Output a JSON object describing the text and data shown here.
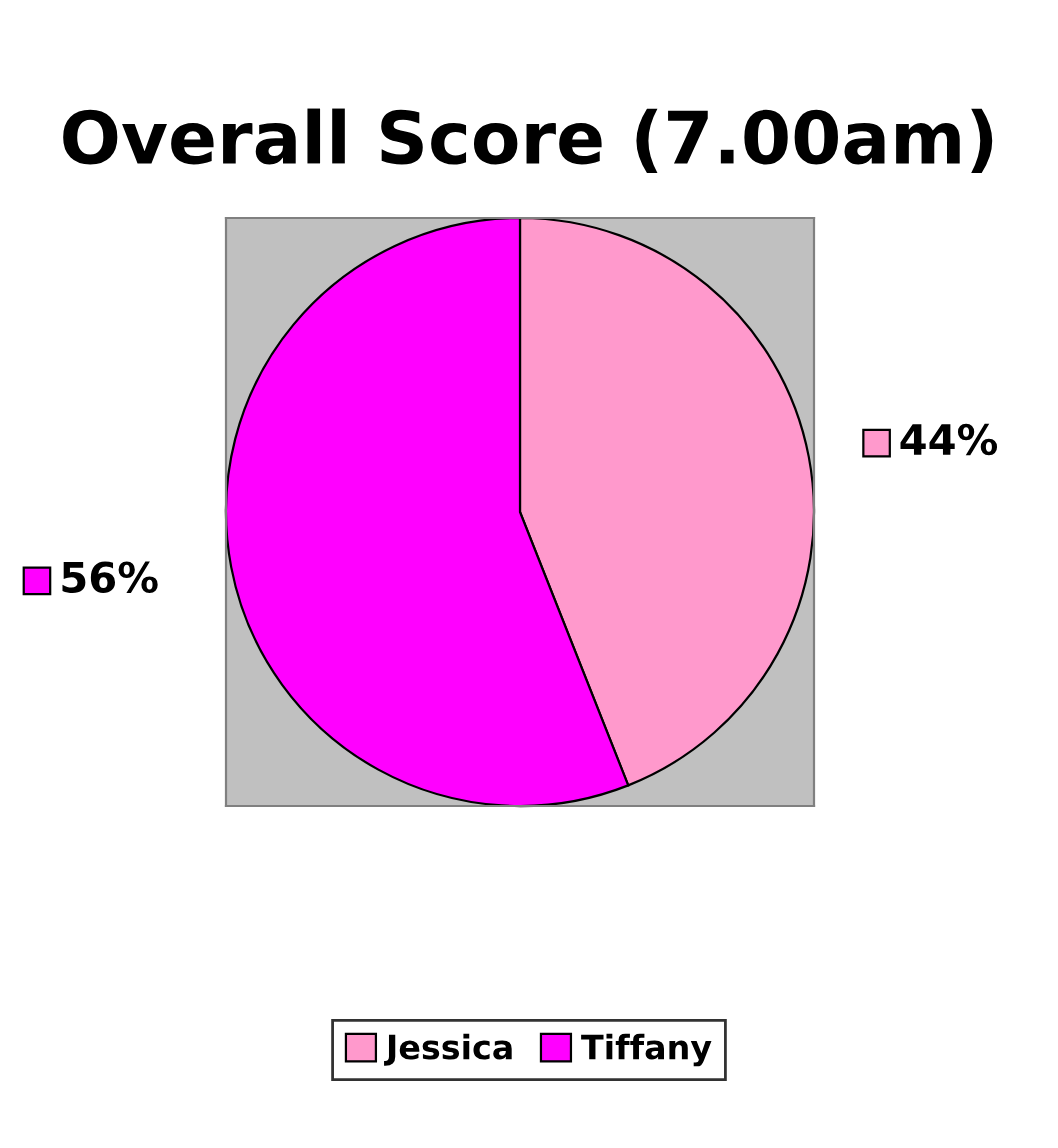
{
  "chart_data": {
    "type": "pie",
    "title": "Overall Score (7.00am)",
    "categories": [
      "Jessica",
      "Tiffany"
    ],
    "values": [
      44,
      56
    ],
    "colors": [
      "#ff99cc",
      "#ff00ff"
    ],
    "value_labels": [
      "44%",
      "56%"
    ],
    "legend": "bottom"
  }
}
